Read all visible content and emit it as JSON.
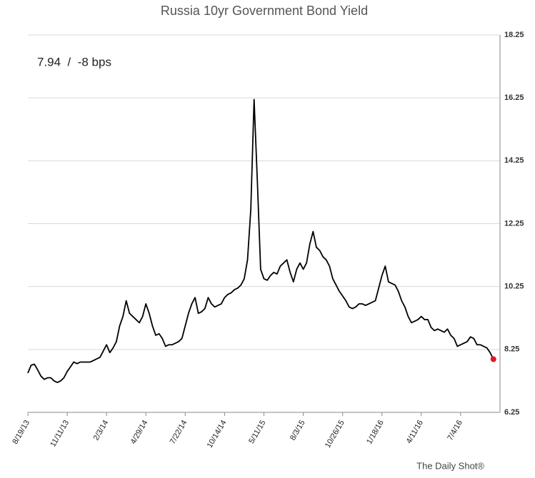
{
  "chart_data": {
    "type": "line",
    "title": "Russia 10yr Government Bond Yield",
    "annotation": "7.94  /  -8 bps",
    "source": "The Daily Shot®",
    "color": "#000000",
    "end_marker_color": "#e8141e",
    "grid": true,
    "ylim": [
      6.25,
      18.25
    ],
    "yticks": [
      6.25,
      8.25,
      10.25,
      12.25,
      14.25,
      16.25,
      18.25
    ],
    "categories": [
      "8/19/13",
      null,
      null,
      null,
      null,
      null,
      null,
      null,
      null,
      null,
      null,
      null,
      "11/11/13",
      null,
      null,
      null,
      null,
      null,
      null,
      null,
      null,
      null,
      null,
      null,
      "2/3/14",
      null,
      null,
      null,
      null,
      null,
      null,
      null,
      null,
      null,
      null,
      null,
      "4/29/14",
      null,
      null,
      null,
      null,
      null,
      null,
      null,
      null,
      null,
      null,
      null,
      "7/22/14",
      null,
      null,
      null,
      null,
      null,
      null,
      null,
      null,
      null,
      null,
      null,
      "10/14/14",
      null,
      null,
      null,
      null,
      null,
      null,
      null,
      null,
      null,
      null,
      null,
      "5/11/15",
      null,
      null,
      null,
      null,
      null,
      null,
      null,
      null,
      null,
      null,
      null,
      "8/3/15",
      null,
      null,
      null,
      null,
      null,
      null,
      null,
      null,
      null,
      null,
      null,
      "10/26/15",
      null,
      null,
      null,
      null,
      null,
      null,
      null,
      null,
      null,
      null,
      null,
      "1/18/16",
      null,
      null,
      null,
      null,
      null,
      null,
      null,
      null,
      null,
      null,
      null,
      "4/11/16",
      null,
      null,
      null,
      null,
      null,
      null,
      null,
      null,
      null,
      null,
      null,
      "7/4/16",
      null,
      null,
      null,
      null,
      null,
      null,
      null,
      null,
      null,
      null
    ],
    "values": [
      7.5,
      7.75,
      7.78,
      7.6,
      7.4,
      7.3,
      7.35,
      7.35,
      7.25,
      7.2,
      7.25,
      7.35,
      7.55,
      7.7,
      7.85,
      7.8,
      7.85,
      7.85,
      7.85,
      7.85,
      7.9,
      7.95,
      8.0,
      8.2,
      8.4,
      8.15,
      8.3,
      8.5,
      9.0,
      9.3,
      9.8,
      9.4,
      9.3,
      9.2,
      9.1,
      9.3,
      9.7,
      9.4,
      9.0,
      8.7,
      8.75,
      8.6,
      8.35,
      8.4,
      8.4,
      8.45,
      8.5,
      8.6,
      9.0,
      9.4,
      9.7,
      9.9,
      9.4,
      9.45,
      9.55,
      9.9,
      9.7,
      9.6,
      9.65,
      9.7,
      9.9,
      10.0,
      10.05,
      10.15,
      10.2,
      10.3,
      10.5,
      11.1,
      12.7,
      16.2,
      13.6,
      10.8,
      10.5,
      10.45,
      10.6,
      10.7,
      10.65,
      10.9,
      11.0,
      11.1,
      10.7,
      10.4,
      10.8,
      11.0,
      10.8,
      11.0,
      11.6,
      12.0,
      11.5,
      11.4,
      11.2,
      11.1,
      10.9,
      10.5,
      10.3,
      10.1,
      9.95,
      9.8,
      9.6,
      9.55,
      9.6,
      9.7,
      9.7,
      9.65,
      9.7,
      9.75,
      9.8,
      10.2,
      10.6,
      10.9,
      10.4,
      10.35,
      10.3,
      10.1,
      9.8,
      9.6,
      9.3,
      9.1,
      9.15,
      9.2,
      9.3,
      9.2,
      9.2,
      8.95,
      8.85,
      8.9,
      8.85,
      8.8,
      8.9,
      8.7,
      8.6,
      8.35,
      8.4,
      8.45,
      8.5,
      8.65,
      8.6,
      8.4,
      8.4,
      8.35,
      8.3,
      8.15,
      7.94
    ]
  }
}
